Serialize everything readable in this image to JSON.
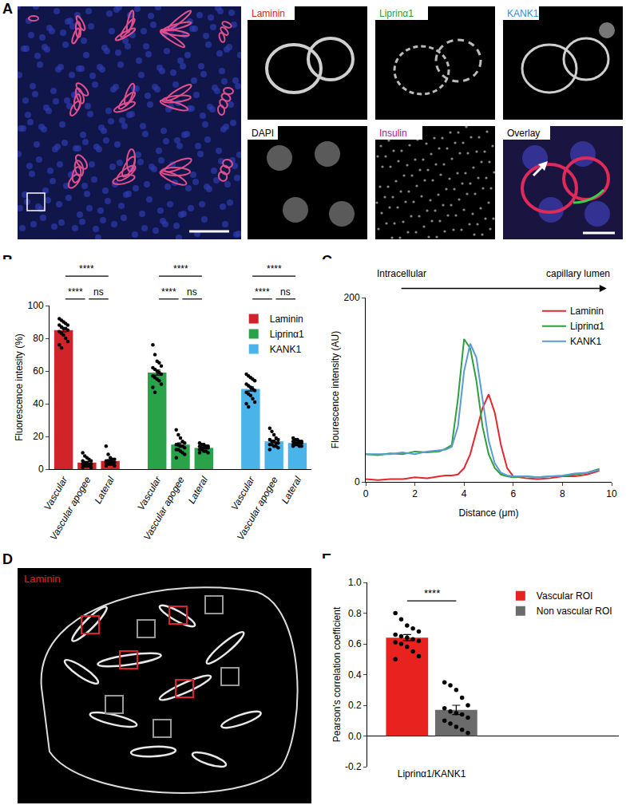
{
  "chart_data": [
    {
      "panel": "B",
      "type": "bar",
      "categories": [
        "Vascular",
        "Vascular apogee",
        "Lateral"
      ],
      "ylabel": "Fluorescence intesity (%)",
      "ylim": [
        0,
        100
      ],
      "yticks": [
        0,
        20,
        40,
        60,
        80,
        100
      ],
      "grid": false,
      "legend": "upper right",
      "series": [
        {
          "name": "Laminin",
          "color": "#d1232a",
          "values": [
            85,
            4,
            5
          ],
          "errors": [
            1,
            0.6,
            0.8
          ],
          "points": [
            [
              92,
              91,
              90,
              89,
              88,
              88,
              87,
              86,
              86,
              85,
              84,
              83,
              82,
              80,
              78,
              76,
              74
            ],
            [
              10,
              8,
              7,
              6,
              5,
              5,
              4,
              4,
              3,
              3,
              3,
              2,
              2,
              2,
              1,
              1
            ],
            [
              14,
              9,
              7,
              6,
              6,
              5,
              5,
              5,
              4,
              4,
              4,
              3,
              3,
              3,
              2,
              2
            ]
          ]
        },
        {
          "name": "Liprinα1",
          "color": "#2aa24a",
          "values": [
            59,
            15,
            13
          ],
          "errors": [
            1.5,
            1,
            0.4
          ],
          "points": [
            [
              76,
              70,
              66,
              65,
              63,
              62,
              61,
              60,
              59,
              58,
              57,
              56,
              55,
              54,
              52,
              50,
              47
            ],
            [
              24,
              21,
              19,
              17,
              16,
              15,
              15,
              14,
              14,
              13,
              12,
              12,
              11,
              10,
              9,
              7
            ],
            [
              16,
              15,
              15,
              14,
              14,
              14,
              13,
              13,
              13,
              13,
              12,
              12,
              11,
              11,
              10,
              10
            ]
          ]
        },
        {
          "name": "KANK1",
          "color": "#4ab4ea",
          "values": [
            49,
            17,
            16
          ],
          "errors": [
            1.3,
            0.8,
            0.4
          ],
          "points": [
            [
              58,
              57,
              56,
              55,
              54,
              52,
              51,
              50,
              49,
              48,
              47,
              46,
              45,
              43,
              41,
              40,
              38
            ],
            [
              25,
              23,
              21,
              19,
              18,
              18,
              17,
              17,
              16,
              16,
              15,
              15,
              14,
              14,
              13,
              12
            ],
            [
              19,
              18,
              18,
              17,
              17,
              17,
              16,
              16,
              16,
              16,
              15,
              15,
              15,
              14,
              14,
              14
            ]
          ]
        }
      ],
      "comparisons": [
        {
          "from": "Vascular",
          "to": "Vascular apogee",
          "label": "****"
        },
        {
          "from": "Vascular",
          "to": "Lateral",
          "label": "****"
        },
        {
          "from": "Vascular apogee",
          "to": "Lateral",
          "label": "ns"
        }
      ]
    },
    {
      "panel": "C",
      "type": "line",
      "annotations": [
        "Intracellular",
        "capillary lumen"
      ],
      "xlabel": "Distance (μm)",
      "ylabel": "Flourescence intensity (AU)",
      "x": [
        0,
        0.5,
        1,
        1.5,
        2,
        2.5,
        3,
        3.25,
        3.5,
        3.75,
        4,
        4.25,
        4.5,
        4.75,
        5,
        5.25,
        5.5,
        5.75,
        6,
        6.5,
        7,
        7.5,
        8,
        8.5,
        9,
        9.5
      ],
      "xlim": [
        0,
        10
      ],
      "xticks": [
        0,
        2,
        4,
        6,
        8,
        10
      ],
      "ylim": [
        0,
        200
      ],
      "yticks": [
        0,
        200
      ],
      "grid": false,
      "legend": "upper right",
      "series": [
        {
          "name": "Laminin",
          "color": "#e8252c",
          "values": [
            3,
            2,
            3,
            3,
            5,
            4,
            6,
            7,
            7,
            8,
            15,
            30,
            55,
            80,
            95,
            75,
            40,
            15,
            6,
            4,
            3,
            4,
            6,
            6,
            8,
            12
          ]
        },
        {
          "name": "Liprinα1",
          "color": "#2f9e3c",
          "values": [
            30,
            29,
            31,
            30,
            33,
            32,
            33,
            36,
            40,
            90,
            155,
            145,
            110,
            60,
            30,
            15,
            8,
            6,
            5,
            6,
            5,
            6,
            6,
            8,
            10,
            14
          ]
        },
        {
          "name": "KANK1",
          "color": "#5a9bd5",
          "values": [
            30,
            30,
            30,
            32,
            30,
            33,
            34,
            35,
            38,
            60,
            120,
            150,
            135,
            90,
            45,
            20,
            10,
            7,
            6,
            6,
            5,
            6,
            7,
            9,
            10,
            13
          ]
        }
      ]
    },
    {
      "panel": "E",
      "type": "bar",
      "categories": [
        "Liprinα1/KANK1"
      ],
      "ylabel": "Pearson's correlation coefficient",
      "ylim": [
        -0.2,
        1
      ],
      "yticks": [
        -0.2,
        {
          "value": 0,
          "label": "0.0"
        },
        0.2,
        0.4,
        0.6,
        0.8,
        {
          "value": 1,
          "label": "1.0"
        }
      ],
      "grid": false,
      "legend": "upper right",
      "series": [
        {
          "name": "Vascular ROI",
          "color": "#e8231f",
          "values": [
            0.64
          ],
          "errors": [
            0.02
          ],
          "points": [
            [
              0.8,
              0.76,
              0.72,
              0.7,
              0.68,
              0.66,
              0.65,
              0.64,
              0.63,
              0.62,
              0.61,
              0.6,
              0.58,
              0.55,
              0.52,
              0.5
            ]
          ]
        },
        {
          "name": "Non vascular ROI",
          "color": "#6b6b6b",
          "values": [
            0.17
          ],
          "errors": [
            0.03
          ],
          "points": [
            [
              0.35,
              0.33,
              0.3,
              0.25,
              0.2,
              0.18,
              0.16,
              0.15,
              0.14,
              0.12,
              0.1,
              0.08,
              0.06,
              0.04,
              0.02
            ]
          ]
        }
      ],
      "comparisons": [
        {
          "from": "Vascular ROI",
          "to": "Non vascular ROI",
          "label": "****"
        }
      ]
    }
  ],
  "images": [
    {
      "panel": "A",
      "tiles": [
        {
          "label": "Laminin",
          "color": "#d1232a"
        },
        {
          "label": "Liprinα1",
          "color": "#1f9e3a"
        },
        {
          "label": "KANK1",
          "color": "#2f8fd8"
        },
        {
          "label": "DAPI",
          "color": "#000000"
        },
        {
          "label": "Insulin",
          "color": "#a0208f"
        },
        {
          "label": "Overlay",
          "color": "#000000"
        }
      ]
    },
    {
      "panel": "D",
      "label": "Laminin",
      "color": "#e0202a"
    }
  ]
}
